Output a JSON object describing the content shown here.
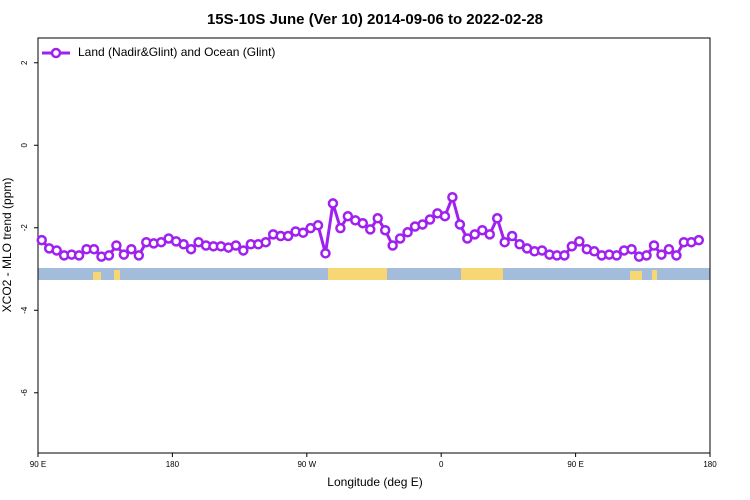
{
  "chart_data": {
    "type": "line",
    "title": "15S-10S June (Ver 10)   2014-09-06 to 2022-02-28",
    "x_label": "Longitude (deg E)",
    "y_label": "XCO2 - MLO trend (ppm)",
    "xlim": [
      90,
      540
    ],
    "ylim": [
      -7.46,
      2.6
    ],
    "xticks": [
      {
        "value": 90,
        "label": "90 E"
      },
      180,
      {
        "value": 270,
        "label": "90 W"
      },
      {
        "value": 360,
        "label": "0"
      },
      {
        "value": 450,
        "label": "90 E"
      },
      {
        "value": 540,
        "label": "180"
      }
    ],
    "yticks": [
      2,
      0,
      -2,
      -4,
      -6
    ],
    "legend": "top-left",
    "series": [
      {
        "name": "Land (Nadir&Glint) and Ocean (Glint)",
        "color": "#a020f0",
        "x": [
          92.5,
          97.5,
          102.5,
          107.5,
          112.5,
          117.5,
          122.5,
          127.5,
          132.5,
          137.5,
          142.5,
          147.5,
          152.5,
          157.5,
          162.5,
          167.5,
          172.5,
          177.5,
          182.5,
          187.5,
          192.5,
          197.5,
          202.5,
          207.5,
          212.5,
          217.5,
          222.5,
          227.5,
          232.5,
          237.5,
          242.5,
          247.5,
          252.5,
          257.5,
          262.5,
          267.5,
          272.5,
          277.5,
          282.5,
          287.5,
          292.5,
          297.5,
          302.5,
          307.5,
          312.5,
          317.5,
          322.5,
          327.5,
          332.5,
          337.5,
          342.5,
          347.5,
          352.5,
          357.5,
          362.5,
          367.5,
          372.5,
          377.5,
          382.5,
          387.5,
          392.5,
          397.5,
          402.5,
          407.5,
          412.5,
          417.5,
          422.5,
          427.5,
          432.5,
          437.5,
          442.5,
          447.5,
          452.5,
          457.5,
          462.5,
          467.5,
          472.5,
          477.5,
          482.5,
          487.5,
          492.5,
          497.5,
          502.5,
          507.5,
          512.5,
          517.5,
          522.5,
          527.5,
          532.5
        ],
        "values": [
          -2.3,
          -2.5,
          -2.55,
          -2.67,
          -2.65,
          -2.67,
          -2.52,
          -2.52,
          -2.7,
          -2.67,
          -2.43,
          -2.65,
          -2.52,
          -2.67,
          -2.35,
          -2.38,
          -2.35,
          -2.26,
          -2.33,
          -2.4,
          -2.52,
          -2.35,
          -2.43,
          -2.45,
          -2.45,
          -2.48,
          -2.43,
          -2.55,
          -2.4,
          -2.4,
          -2.35,
          -2.16,
          -2.2,
          -2.2,
          -2.09,
          -2.12,
          -2.01,
          -1.94,
          -2.62,
          -1.41,
          -2.01,
          -1.72,
          -1.82,
          -1.89,
          -2.04,
          -1.77,
          -2.06,
          -2.43,
          -2.26,
          -2.11,
          -1.97,
          -1.92,
          -1.8,
          -1.65,
          -1.72,
          -1.26,
          -1.92,
          -2.26,
          -2.16,
          -2.06,
          -2.16,
          -1.77,
          -2.35,
          -2.2,
          -2.4,
          -2.5,
          -2.57,
          -2.55,
          -2.65,
          -2.67,
          -2.67,
          -2.45,
          -2.33,
          -2.52,
          -2.57,
          -2.67,
          -2.65,
          -2.67,
          -2.55,
          -2.52,
          -2.7,
          -2.67,
          -2.43,
          -2.65,
          -2.52,
          -2.67,
          -2.35,
          -2.35,
          -2.3
        ]
      }
    ]
  }
}
